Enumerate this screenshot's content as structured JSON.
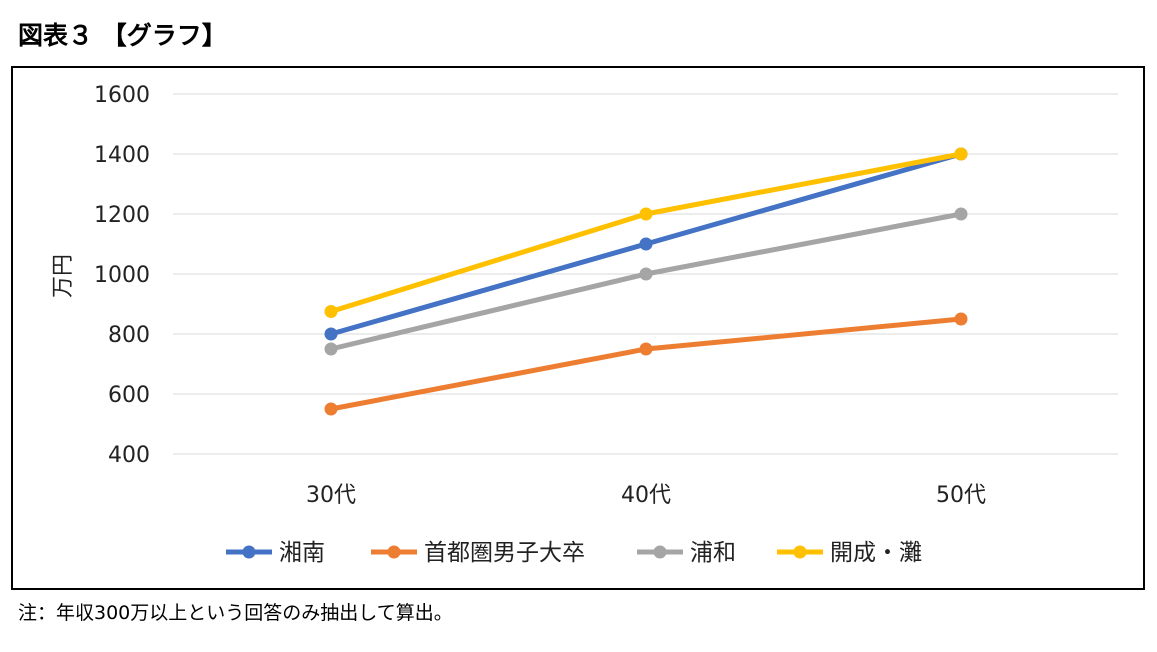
{
  "figure_title": "図表３ 【グラフ】",
  "footnote": "注：年収300万以上という回答のみ抽出して算出。",
  "chart_data": {
    "type": "line",
    "categories": [
      "30代",
      "40代",
      "50代"
    ],
    "ylabel": "万円",
    "xlabel": "",
    "ylim": [
      400,
      1600
    ],
    "yticks": [
      400,
      600,
      800,
      1000,
      1200,
      1400,
      1600
    ],
    "grid": true,
    "legend_position": "bottom",
    "series": [
      {
        "name": "湘南",
        "color": "#4472C4",
        "values": [
          800,
          1100,
          1400
        ]
      },
      {
        "name": "首都圏男子大卒",
        "color": "#ED7D31",
        "values": [
          550,
          750,
          850
        ]
      },
      {
        "name": "浦和",
        "color": "#A5A5A5",
        "values": [
          750,
          1000,
          1200
        ]
      },
      {
        "name": "開成・灘",
        "color": "#FFC000",
        "values": [
          875,
          1200,
          1400
        ]
      }
    ]
  }
}
